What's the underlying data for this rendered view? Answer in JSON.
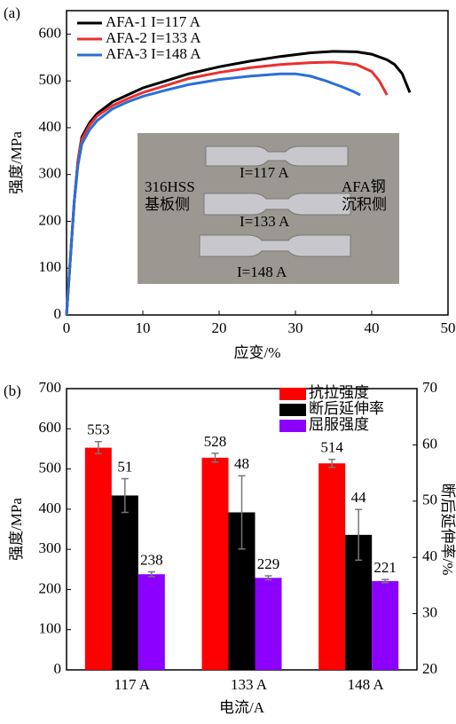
{
  "chart_data": [
    {
      "type": "line",
      "panel_label": "(a)",
      "x_label": "应变/%",
      "y_label": "强度/MPa",
      "xlim": [
        0,
        50
      ],
      "ylim": [
        0,
        650
      ],
      "xticks": [
        0,
        10,
        20,
        30,
        40,
        50
      ],
      "yticks": [
        0,
        100,
        200,
        300,
        400,
        500,
        600
      ],
      "legend": "upper left",
      "series": [
        {
          "name": "AFA-1 I=117 A",
          "color": "#000000",
          "x": [
            0,
            0.5,
            1,
            1.5,
            2,
            3,
            4,
            6,
            8,
            10,
            13,
            16,
            20,
            24,
            28,
            32,
            35,
            38,
            40,
            42,
            43,
            44,
            44.5,
            45
          ],
          "values": [
            0,
            120,
            240,
            330,
            380,
            410,
            430,
            455,
            470,
            485,
            500,
            515,
            530,
            542,
            552,
            560,
            563,
            562,
            557,
            545,
            535,
            515,
            495,
            475
          ]
        },
        {
          "name": "AFA-2 I=133 A",
          "color": "#e8312f",
          "x": [
            0,
            0.5,
            1,
            1.5,
            2,
            3,
            4,
            6,
            8,
            10,
            13,
            16,
            20,
            24,
            28,
            32,
            35,
            38,
            40,
            41,
            42
          ],
          "values": [
            0,
            120,
            240,
            330,
            375,
            405,
            425,
            447,
            462,
            475,
            490,
            505,
            518,
            528,
            535,
            539,
            540,
            535,
            520,
            500,
            470
          ]
        },
        {
          "name": "AFA-3 I=148 A",
          "color": "#2a6fd6",
          "x": [
            0,
            0.5,
            1,
            1.5,
            2,
            3,
            4,
            6,
            8,
            10,
            13,
            16,
            20,
            24,
            28,
            30,
            32,
            34,
            36,
            37.5,
            38.5
          ],
          "values": [
            0,
            120,
            240,
            320,
            365,
            395,
            415,
            440,
            455,
            467,
            480,
            492,
            503,
            510,
            515,
            515,
            510,
            500,
            488,
            478,
            470
          ]
        }
      ],
      "annotations": [
        "316HSS",
        "基板侧",
        "AFA钢",
        "沉积侧",
        "I=117 A",
        "I=133 A",
        "I=148 A"
      ]
    },
    {
      "type": "bar",
      "panel_label": "(b)",
      "x_label": "电流/A",
      "y_label": "强度/MPa",
      "y2_label": "断后延伸率/%",
      "categories": [
        "117 A",
        "133 A",
        "148 A"
      ],
      "ylim": [
        0,
        700
      ],
      "yticks": [
        0,
        100,
        200,
        300,
        400,
        500,
        600,
        700
      ],
      "y2lim": [
        20,
        70
      ],
      "y2ticks": [
        20,
        30,
        40,
        50,
        60,
        70
      ],
      "legend": "upper right",
      "series": [
        {
          "name": "抗拉强度",
          "color": "#ff0000",
          "values": [
            553,
            528,
            514
          ],
          "errors": [
            15,
            11,
            10
          ]
        },
        {
          "name": "断后延伸率",
          "color": "#000000",
          "axis": "y2",
          "values": [
            51,
            48,
            44
          ],
          "errors": [
            3,
            6.5,
            4.5
          ]
        },
        {
          "name": "屈服强度",
          "color": "#8b00ff",
          "values": [
            238,
            229,
            221
          ],
          "errors": [
            6,
            5,
            4
          ]
        }
      ]
    }
  ]
}
